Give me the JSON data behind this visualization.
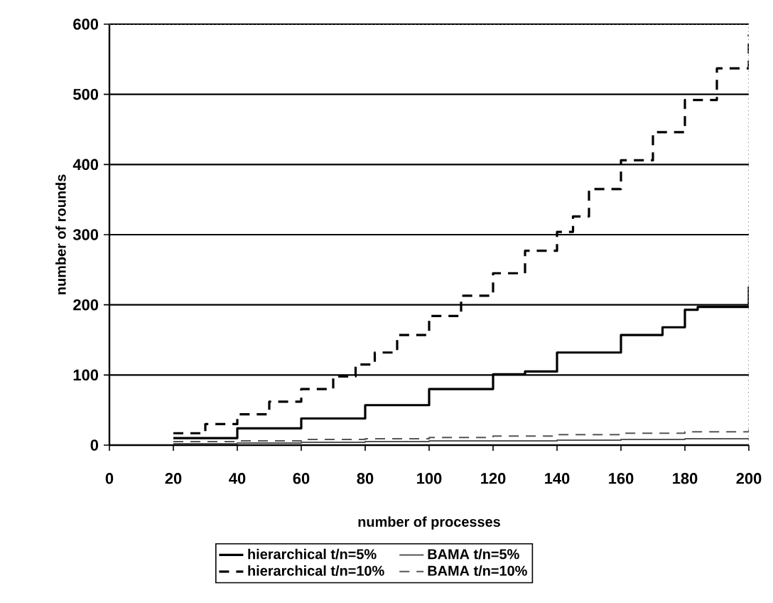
{
  "chart_data": {
    "type": "step",
    "xlabel": "number of processes",
    "ylabel": "number of rounds",
    "xlim": [
      0,
      200
    ],
    "xticks": [
      0,
      20,
      40,
      60,
      80,
      100,
      120,
      140,
      160,
      180,
      200
    ],
    "ylim": [
      0,
      600
    ],
    "yticks": [
      0,
      100,
      200,
      300,
      400,
      500,
      600
    ],
    "grid": "y",
    "legend": "bottom",
    "marker": "none",
    "series": [
      {
        "name": "hierarchical t/n=5%",
        "color": "#000000",
        "line_style": "solid",
        "x": [
          20,
          40,
          60,
          80,
          100,
          120,
          130,
          140,
          160,
          173,
          180,
          184,
          200
        ],
        "values": [
          10,
          24,
          38,
          57,
          80,
          101,
          105,
          132,
          157,
          168,
          193,
          197,
          226
        ]
      },
      {
        "name": "BAMA t/n=5%",
        "color": "#555555",
        "line_style": "solid",
        "x": [
          20,
          40,
          60,
          80,
          100,
          120,
          140,
          160,
          180,
          200
        ],
        "values": [
          2,
          3,
          4,
          5,
          6,
          6,
          7,
          8,
          9,
          10
        ]
      },
      {
        "name": "hierarchical t/n=10%",
        "color": "#000000",
        "line_style": "dashed",
        "x": [
          20,
          30,
          40,
          50,
          60,
          70,
          77,
          83,
          90,
          100,
          110,
          120,
          130,
          140,
          145,
          150,
          160,
          170,
          180,
          190,
          200
        ],
        "values": [
          17,
          30,
          44,
          62,
          80,
          98,
          115,
          132,
          157,
          184,
          213,
          245,
          277,
          304,
          326,
          365,
          406,
          446,
          492,
          537,
          585
        ]
      },
      {
        "name": "BAMA t/n=10%",
        "color": "#555555",
        "line_style": "dashed",
        "x": [
          20,
          40,
          60,
          80,
          100,
          120,
          140,
          160,
          180,
          200
        ],
        "values": [
          5,
          6,
          8,
          9,
          11,
          13,
          15,
          17,
          19,
          22
        ]
      }
    ]
  }
}
